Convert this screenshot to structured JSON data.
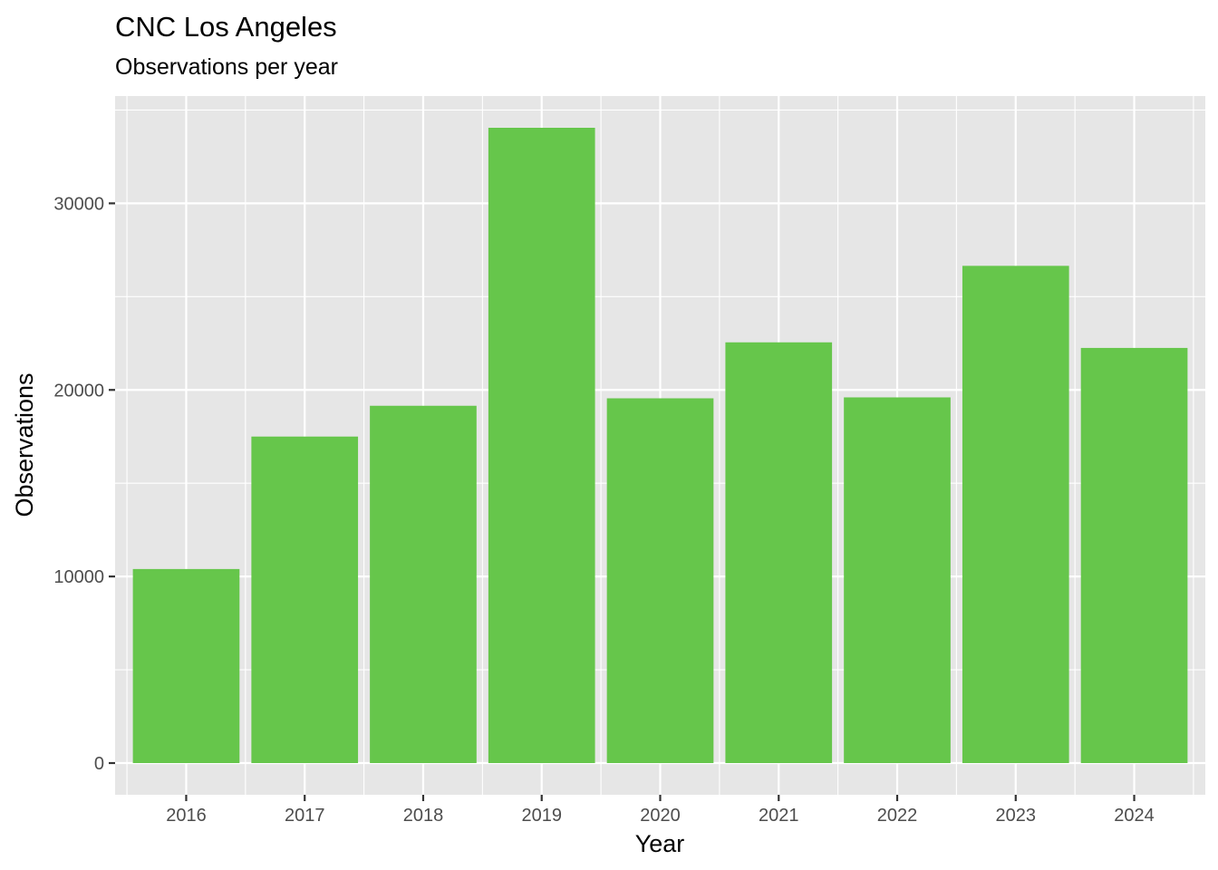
{
  "chart_data": {
    "type": "bar",
    "title": "CNC Los Angeles",
    "subtitle": "Observations per year",
    "xlabel": "Year",
    "ylabel": "Observations",
    "categories": [
      "2016",
      "2017",
      "2018",
      "2019",
      "2020",
      "2021",
      "2022",
      "2023",
      "2024"
    ],
    "values": [
      10400,
      17500,
      19150,
      34050,
      19550,
      22550,
      19600,
      26650,
      22250
    ],
    "ylim": [
      -1700,
      35750
    ],
    "yticks": [
      0,
      10000,
      20000,
      30000
    ],
    "yticks_minor": [
      5000,
      15000,
      25000,
      35000
    ],
    "grid": true,
    "legend": "none",
    "colors": {
      "bar": "#66c64b",
      "panel": "#e6e6e6",
      "grid": "#ffffff",
      "tick_text": "#4d4d4d",
      "tick_mark": "#333333"
    }
  }
}
